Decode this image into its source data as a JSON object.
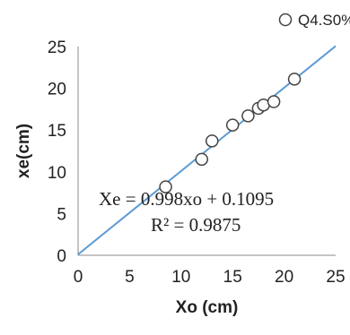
{
  "chart_data": {
    "type": "scatter",
    "xlabel": "Xo (cm)",
    "ylabel": "xe(cm)",
    "xlim": [
      0,
      25
    ],
    "ylim": [
      0,
      25
    ],
    "xticks": [
      0,
      5,
      10,
      15,
      20,
      25
    ],
    "yticks": [
      0,
      5,
      10,
      15,
      20,
      25
    ],
    "grid": false,
    "legend": {
      "position": "top-right",
      "label": "Q4.S0%"
    },
    "series": [
      {
        "name": "Q4.S0%",
        "marker": "open-circle",
        "color": "#444444",
        "points": [
          {
            "x": 8.5,
            "y": 8.2
          },
          {
            "x": 12.0,
            "y": 11.5
          },
          {
            "x": 13.0,
            "y": 13.7
          },
          {
            "x": 15.0,
            "y": 15.6
          },
          {
            "x": 16.5,
            "y": 16.7
          },
          {
            "x": 17.5,
            "y": 17.6
          },
          {
            "x": 18.0,
            "y": 18.0
          },
          {
            "x": 19.0,
            "y": 18.4
          },
          {
            "x": 21.0,
            "y": 21.1
          }
        ]
      }
    ],
    "trendline": {
      "slope": 0.998,
      "intercept": 0.1095,
      "color": "#5b9bd5",
      "equation": "Xe = 0.998xo + 0.1095",
      "r_squared": "R² = 0.9875"
    }
  }
}
